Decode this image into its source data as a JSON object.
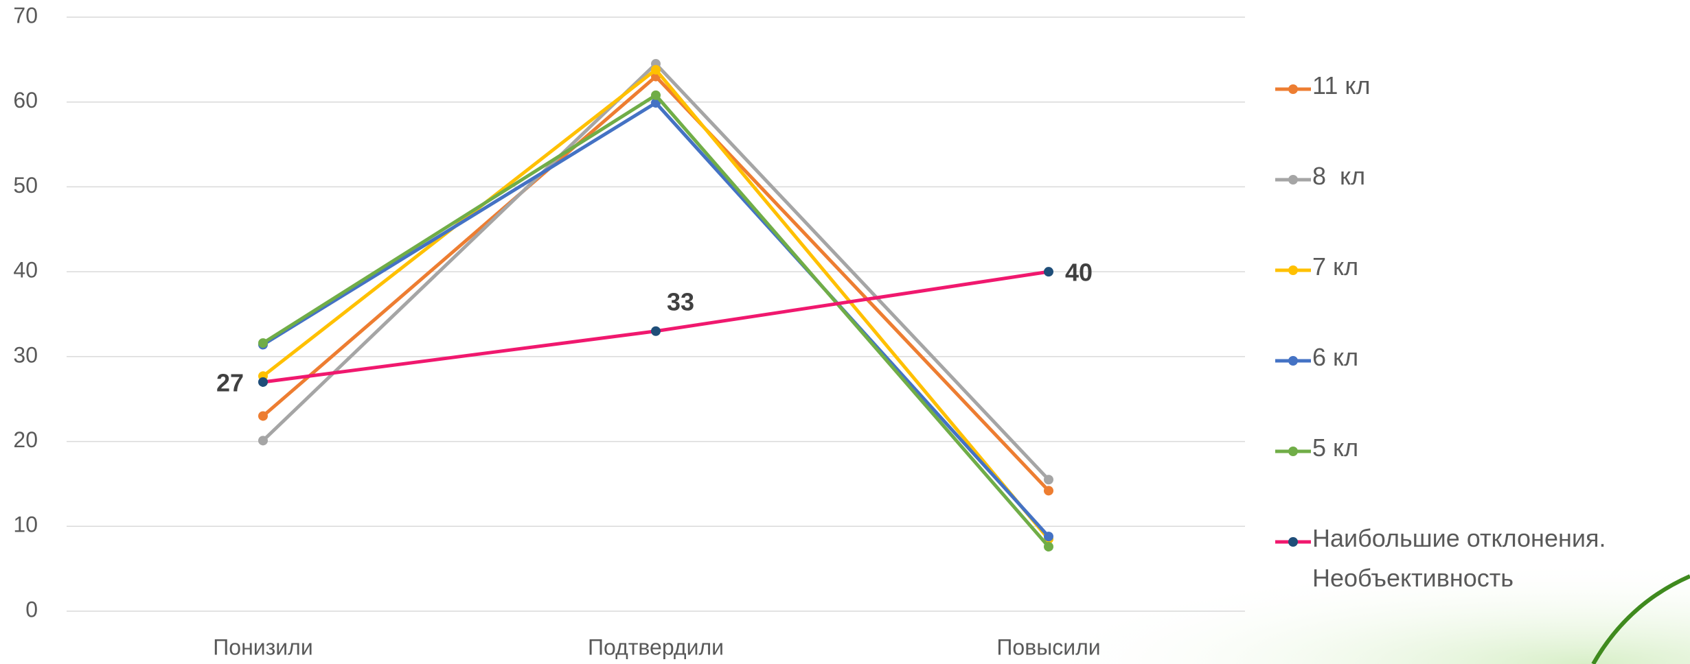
{
  "chart_data": {
    "type": "line",
    "categories": [
      "Понизили",
      "Подтвердили",
      "Повысили"
    ],
    "series": [
      {
        "name": "11 кл",
        "color": "#ed7d31",
        "values": [
          23,
          63,
          14.2
        ]
      },
      {
        "name": "8  кл",
        "color": "#a5a5a5",
        "values": [
          20.1,
          64.5,
          15.5
        ]
      },
      {
        "name": "7 кл",
        "color": "#ffc000",
        "values": [
          27.7,
          63.8,
          8.5
        ]
      },
      {
        "name": "6 кл",
        "color": "#4472c4",
        "values": [
          31.4,
          59.9,
          8.8
        ]
      },
      {
        "name": "5 кл",
        "color": "#70ad47",
        "values": [
          31.6,
          60.8,
          7.6
        ]
      },
      {
        "name": "Наибольшие отклонения. Необъективность",
        "color": "#f0186e",
        "marker_color": "#1f4e79",
        "data_labels": true,
        "values": [
          27,
          33,
          40
        ]
      }
    ],
    "ylim": [
      0,
      70
    ],
    "yticks": [
      0,
      10,
      20,
      30,
      40,
      50,
      60,
      70
    ],
    "grid": true,
    "legend": "right"
  }
}
